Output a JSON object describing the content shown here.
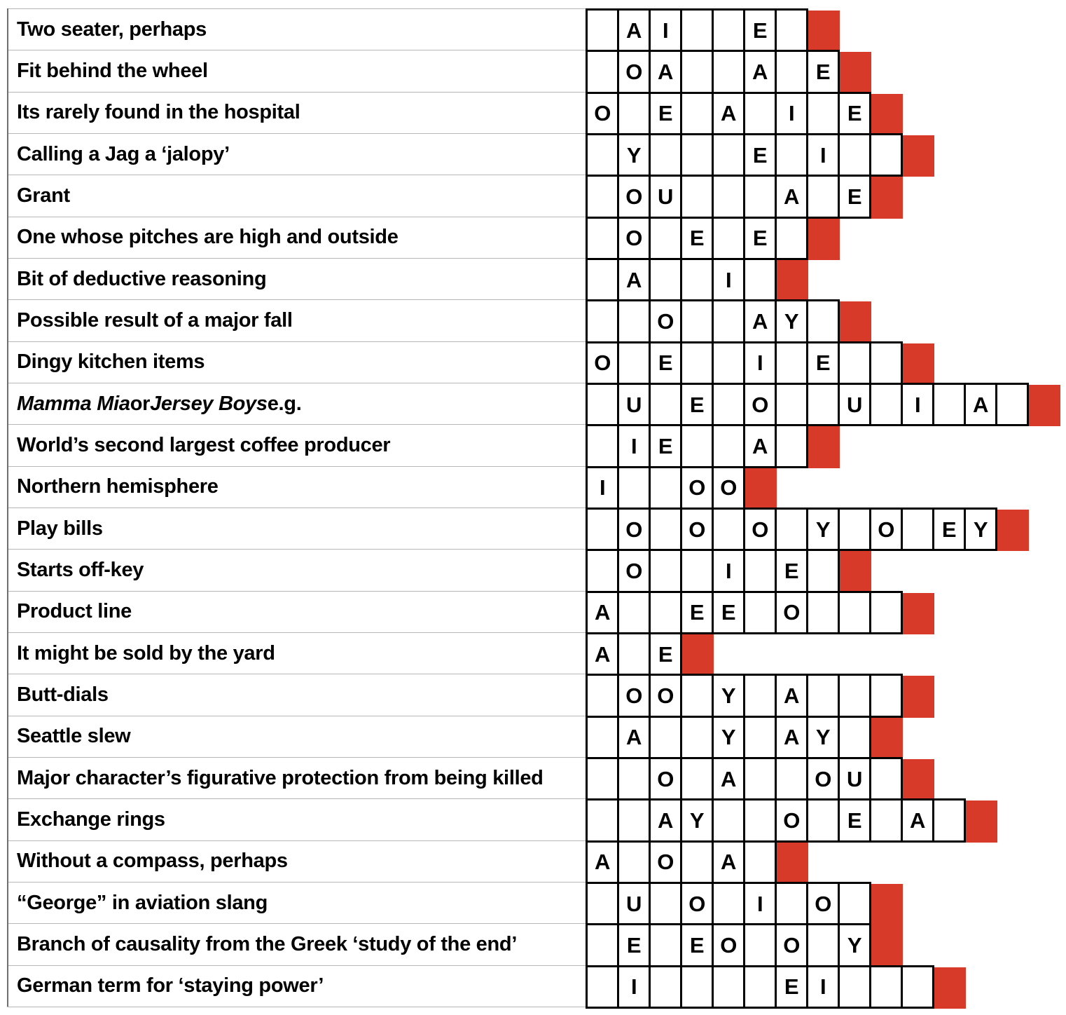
{
  "puzzle": {
    "description": "Clue list with cascading answer grid; each answer row ends in a red block square",
    "colors": {
      "block_red": "#d73a28",
      "cell_border": "#000000",
      "clue_rule_gray": "#b6b6b6"
    },
    "rows": [
      {
        "clue": [
          {
            "t": "Two seater, perhaps"
          }
        ],
        "boxes": ".AI..E."
      },
      {
        "clue": [
          {
            "t": "Fit behind the wheel"
          }
        ],
        "boxes": ".OA..A.E"
      },
      {
        "clue": [
          {
            "t": "Its rarely found in the hospital"
          }
        ],
        "boxes": "O.E.A.I.E"
      },
      {
        "clue": [
          {
            "t": "Calling a Jag a ‘jalopy’"
          }
        ],
        "boxes": ".Y...E.I.."
      },
      {
        "clue": [
          {
            "t": "Grant"
          }
        ],
        "boxes": ".OU...A.E"
      },
      {
        "clue": [
          {
            "t": "One whose pitches are high and outside"
          }
        ],
        "boxes": ".O.E.E."
      },
      {
        "clue": [
          {
            "t": "Bit of deductive reasoning"
          }
        ],
        "boxes": ".A..I."
      },
      {
        "clue": [
          {
            "t": "Possible result of a major fall"
          }
        ],
        "boxes": "..O..AY."
      },
      {
        "clue": [
          {
            "t": "Dingy kitchen items"
          }
        ],
        "boxes": "O.E..I.E.."
      },
      {
        "clue": [
          {
            "t": "Mamma Mia",
            "i": true
          },
          {
            "t": " or "
          },
          {
            "t": "Jersey Boys",
            "i": true
          },
          {
            "t": " e.g."
          }
        ],
        "boxes": ".U.E.O..U.I.A."
      },
      {
        "clue": [
          {
            "t": "World’s second largest coffee producer"
          }
        ],
        "boxes": ".IE..A."
      },
      {
        "clue": [
          {
            "t": "Northern hemisphere"
          }
        ],
        "boxes": "I..OO"
      },
      {
        "clue": [
          {
            "t": "Play bills"
          }
        ],
        "boxes": ".O.O.O.Y.O.EY"
      },
      {
        "clue": [
          {
            "t": "Starts off-key"
          }
        ],
        "boxes": ".O..I.E."
      },
      {
        "clue": [
          {
            "t": "Product line"
          }
        ],
        "boxes": "A..EE.O..."
      },
      {
        "clue": [
          {
            "t": "It might be sold by the yard"
          }
        ],
        "boxes": "A.E"
      },
      {
        "clue": [
          {
            "t": "Butt-dials"
          }
        ],
        "boxes": ".OO.Y.A..."
      },
      {
        "clue": [
          {
            "t": "Seattle slew"
          }
        ],
        "boxes": ".A..Y.AY."
      },
      {
        "clue": [
          {
            "t": "Major character’s figurative protection from being killed"
          }
        ],
        "boxes": "..O.A..OU."
      },
      {
        "clue": [
          {
            "t": "Exchange rings"
          }
        ],
        "boxes": "..AY..O.E.A."
      },
      {
        "clue": [
          {
            "t": "Without a compass, perhaps"
          }
        ],
        "boxes": "A.O.A."
      },
      {
        "clue": [
          {
            "t": "“George” in aviation slang"
          }
        ],
        "boxes": ".U.O.I.O."
      },
      {
        "clue": [
          {
            "t": "Branch of causality from the Greek ‘study of the end’"
          }
        ],
        "boxes": ".E.EO.O.Y"
      },
      {
        "clue": [
          {
            "t": "German term for ‘staying power’"
          }
        ],
        "boxes": ".I....EI..."
      }
    ]
  }
}
